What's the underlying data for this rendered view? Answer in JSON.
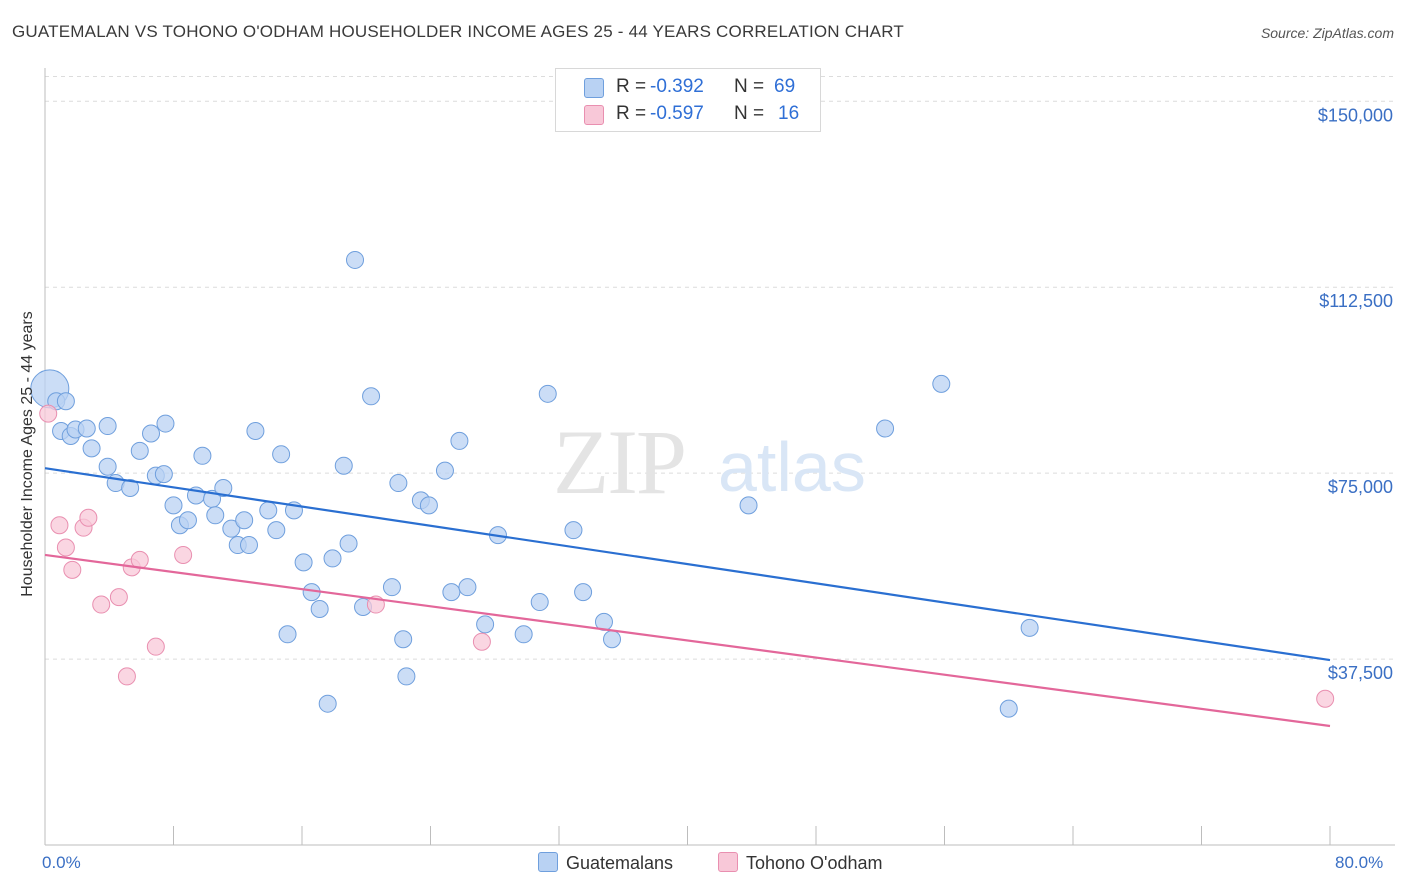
{
  "title": "GUATEMALAN VS TOHONO O'ODHAM HOUSEHOLDER INCOME AGES 25 - 44 YEARS CORRELATION CHART",
  "source": "Source: ZipAtlas.com",
  "watermark": {
    "zip": "ZIP",
    "atlas": "atlas"
  },
  "legend": {
    "r_label": "R =",
    "n_label": "N =",
    "rows": [
      {
        "r": "-0.392",
        "n": "69"
      },
      {
        "r": "-0.597",
        "n": "16"
      }
    ]
  },
  "bottom_legend": [
    "Guatemalans",
    "Tohono O'odham"
  ],
  "colors": {
    "blue_fill": "#b9d2f3",
    "blue_stroke": "#6f9fdd",
    "blue_line": "#2a6fd1",
    "pink_fill": "#f8c8d8",
    "pink_stroke": "#e98fb0",
    "pink_line": "#e3679a",
    "axis_text": "#3a6fc4"
  },
  "chart_data": {
    "type": "scatter",
    "title": "GUATEMALAN VS TOHONO O'ODHAM HOUSEHOLDER INCOME AGES 25 - 44 YEARS CORRELATION CHART",
    "xlabel": "",
    "ylabel": "Householder Income Ages 25 - 44 years",
    "xlim": [
      0,
      80
    ],
    "ylim": [
      0,
      155000
    ],
    "x_tick_labels": [
      "0.0%",
      "80.0%"
    ],
    "y_ticks": [
      37500,
      75000,
      112500,
      150000
    ],
    "y_tick_labels": [
      "$37,500",
      "$75,000",
      "$112,500",
      "$150,000"
    ],
    "grid": true,
    "legend_position": "top-center",
    "series": [
      {
        "name": "Guatemalans",
        "r": -0.392,
        "n": 69,
        "trend": {
          "x": [
            0,
            80
          ],
          "y": [
            76000,
            37300
          ]
        },
        "points": [
          {
            "x": 0.3,
            "y": 92000,
            "big": true
          },
          {
            "x": 0.7,
            "y": 89500
          },
          {
            "x": 1.0,
            "y": 83500
          },
          {
            "x": 1.6,
            "y": 82500
          },
          {
            "x": 1.9,
            "y": 83800
          },
          {
            "x": 2.6,
            "y": 84000
          },
          {
            "x": 2.9,
            "y": 80000
          },
          {
            "x": 3.9,
            "y": 84500
          },
          {
            "x": 3.9,
            "y": 76300
          },
          {
            "x": 4.4,
            "y": 73000
          },
          {
            "x": 5.3,
            "y": 72000
          },
          {
            "x": 5.9,
            "y": 79500
          },
          {
            "x": 6.6,
            "y": 83000
          },
          {
            "x": 6.9,
            "y": 74500
          },
          {
            "x": 7.4,
            "y": 74800
          },
          {
            "x": 7.5,
            "y": 85000
          },
          {
            "x": 8.0,
            "y": 68500
          },
          {
            "x": 8.4,
            "y": 64500
          },
          {
            "x": 8.9,
            "y": 65500
          },
          {
            "x": 9.4,
            "y": 70500
          },
          {
            "x": 9.8,
            "y": 78500
          },
          {
            "x": 10.4,
            "y": 69800
          },
          {
            "x": 10.6,
            "y": 66500
          },
          {
            "x": 11.1,
            "y": 72000
          },
          {
            "x": 11.6,
            "y": 63800
          },
          {
            "x": 12.0,
            "y": 60500
          },
          {
            "x": 12.4,
            "y": 65500
          },
          {
            "x": 12.7,
            "y": 60500
          },
          {
            "x": 13.1,
            "y": 83500
          },
          {
            "x": 13.9,
            "y": 67500
          },
          {
            "x": 14.4,
            "y": 63500
          },
          {
            "x": 14.7,
            "y": 78800
          },
          {
            "x": 15.1,
            "y": 42500
          },
          {
            "x": 15.5,
            "y": 67500
          },
          {
            "x": 16.1,
            "y": 57000
          },
          {
            "x": 16.6,
            "y": 51000
          },
          {
            "x": 17.1,
            "y": 47600
          },
          {
            "x": 17.6,
            "y": 28500
          },
          {
            "x": 17.9,
            "y": 57800
          },
          {
            "x": 18.6,
            "y": 76500
          },
          {
            "x": 18.9,
            "y": 60800
          },
          {
            "x": 19.3,
            "y": 118000
          },
          {
            "x": 19.8,
            "y": 48000
          },
          {
            "x": 20.3,
            "y": 90500
          },
          {
            "x": 21.6,
            "y": 52000
          },
          {
            "x": 22.0,
            "y": 73000
          },
          {
            "x": 22.3,
            "y": 41500
          },
          {
            "x": 22.5,
            "y": 34000
          },
          {
            "x": 23.4,
            "y": 69500
          },
          {
            "x": 23.9,
            "y": 68500
          },
          {
            "x": 24.9,
            "y": 75500
          },
          {
            "x": 25.3,
            "y": 51000
          },
          {
            "x": 25.8,
            "y": 81500
          },
          {
            "x": 26.3,
            "y": 52000
          },
          {
            "x": 27.4,
            "y": 44500
          },
          {
            "x": 28.2,
            "y": 62500
          },
          {
            "x": 29.8,
            "y": 42500
          },
          {
            "x": 30.8,
            "y": 49000
          },
          {
            "x": 31.3,
            "y": 91000
          },
          {
            "x": 32.9,
            "y": 63500
          },
          {
            "x": 33.5,
            "y": 51000
          },
          {
            "x": 34.8,
            "y": 45000
          },
          {
            "x": 35.3,
            "y": 41500
          },
          {
            "x": 43.8,
            "y": 68500
          },
          {
            "x": 52.3,
            "y": 84000
          },
          {
            "x": 55.8,
            "y": 93000
          },
          {
            "x": 60.0,
            "y": 27500
          },
          {
            "x": 61.3,
            "y": 43800
          },
          {
            "x": 1.3,
            "y": 89500
          }
        ]
      },
      {
        "name": "Tohono O'odham",
        "r": -0.597,
        "n": 16,
        "trend": {
          "x": [
            0,
            80
          ],
          "y": [
            58500,
            24000
          ]
        },
        "points": [
          {
            "x": 0.2,
            "y": 87000
          },
          {
            "x": 0.9,
            "y": 64500
          },
          {
            "x": 1.3,
            "y": 60000
          },
          {
            "x": 1.7,
            "y": 55500
          },
          {
            "x": 2.4,
            "y": 64000
          },
          {
            "x": 2.7,
            "y": 66000
          },
          {
            "x": 3.5,
            "y": 48500
          },
          {
            "x": 4.6,
            "y": 50000
          },
          {
            "x": 5.1,
            "y": 34000
          },
          {
            "x": 5.4,
            "y": 56000
          },
          {
            "x": 5.9,
            "y": 57500
          },
          {
            "x": 6.9,
            "y": 40000
          },
          {
            "x": 8.6,
            "y": 58500
          },
          {
            "x": 20.6,
            "y": 48500
          },
          {
            "x": 27.2,
            "y": 41000
          },
          {
            "x": 79.7,
            "y": 29500
          }
        ]
      }
    ]
  }
}
